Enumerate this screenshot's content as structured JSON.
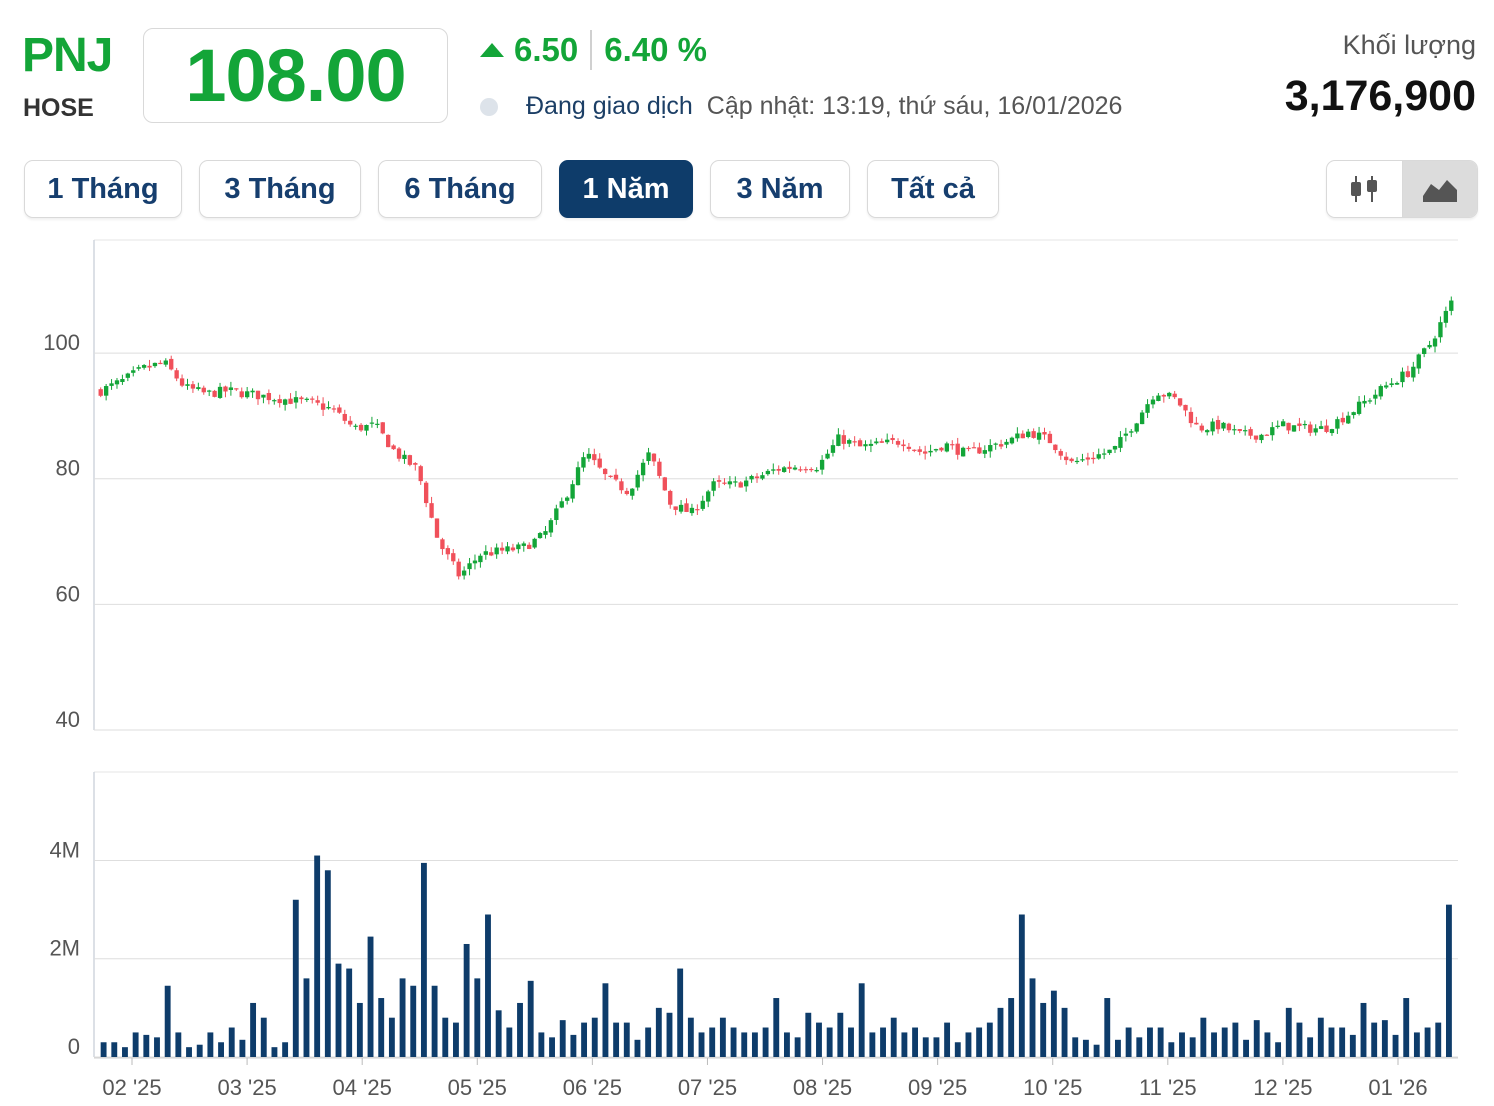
{
  "header": {
    "ticker": "PNJ",
    "exchange": "HOSE",
    "price": "108.00",
    "change": "6.50",
    "change_pct": "6.40 %",
    "status": "Đang giao dịch",
    "updated": "Cập nhật: 13:19, thứ sáu, 16/01/2026",
    "volume_label": "Khối lượng",
    "volume": "3,176,900"
  },
  "tabs": [
    {
      "label": "1 Tháng",
      "active": false
    },
    {
      "label": "3 Tháng",
      "active": false
    },
    {
      "label": "6 Tháng",
      "active": false
    },
    {
      "label": "1 Năm",
      "active": true
    },
    {
      "label": "3 Năm",
      "active": false
    },
    {
      "label": "Tất cả",
      "active": false
    }
  ],
  "chart_type_buttons": [
    {
      "icon": "candlestick-icon",
      "active": false
    },
    {
      "icon": "area-chart-icon",
      "active": true
    }
  ],
  "colors": {
    "up": "#13a538",
    "down": "#f0505a",
    "volume": "#0e3c6a",
    "accent": "#0e3c6a"
  },
  "chart_data": [
    {
      "type": "line",
      "series": [
        {
          "name": "",
          "style": "candlestick"
        }
      ],
      "x": [
        "01/2025",
        "01/2025",
        "02/2025",
        "02/2025",
        "02/2025",
        "02/2025",
        "02/2025",
        "03/2025",
        "03/2025",
        "03/2025",
        "03/2025",
        "03/2025",
        "03/2025",
        "03/2025",
        "04/2025",
        "04/2025",
        "04/2025",
        "04/2025",
        "04/2025",
        "04/2025",
        "05/2025",
        "05/2025",
        "05/2025",
        "05/2025",
        "05/2025",
        "05/2025",
        "06/2025",
        "06/2025",
        "06/2025",
        "06/2025",
        "06/2025",
        "06/2025",
        "07/2025",
        "07/2025",
        "07/2025",
        "07/2025",
        "07/2025",
        "08/2025",
        "08/2025",
        "08/2025",
        "08/2025",
        "09/2025",
        "09/2025",
        "09/2025",
        "09/2025",
        "10/2025",
        "10/2025",
        "10/2025",
        "10/2025",
        "10/2025",
        "10/2025",
        "11/2025",
        "11/2025",
        "11/2025",
        "11/2025",
        "11/2025",
        "12/2025",
        "12/2025",
        "12/2025",
        "12/2025",
        "12/2025",
        "01/2026",
        "01/2026",
        "01/2026",
        "01/2026"
      ],
      "values": [
        94,
        95.5,
        97.5,
        98.5,
        94.5,
        93.5,
        94,
        93.5,
        93,
        92.5,
        92,
        91,
        88,
        88.5,
        84,
        81.5,
        70,
        64.5,
        68,
        68.5,
        69,
        71,
        77,
        84,
        80,
        78,
        84,
        76,
        74.5,
        79,
        79,
        80,
        81.5,
        82,
        82,
        86.5,
        85,
        85.5,
        86,
        84,
        85.5,
        84,
        85,
        86,
        87.5,
        86,
        82.5,
        83.5,
        84.5,
        89,
        94,
        92.5,
        88,
        88.5,
        87,
        87,
        88.5,
        88,
        88,
        90,
        92.5,
        95,
        97,
        101.5,
        108
      ],
      "ylim": [
        40,
        118
      ],
      "yticks": [
        "100",
        "80",
        "60",
        "40"
      ]
    },
    {
      "type": "bar",
      "series": [
        {
          "name": "",
          "values": [
            0.3,
            0.3,
            0.2,
            0.5,
            0.45,
            0.4,
            1.45,
            0.5,
            0.2,
            0.25,
            0.5,
            0.3,
            0.6,
            0.35,
            1.1,
            0.8,
            0.2,
            0.3,
            3.2,
            1.6,
            4.1,
            3.8,
            1.9,
            1.8,
            1.1,
            2.45,
            1.2,
            0.8,
            1.6,
            1.45,
            3.95,
            1.45,
            0.8,
            0.7,
            2.3,
            1.6,
            2.9,
            0.95,
            0.6,
            1.1,
            1.55,
            0.5,
            0.4,
            0.75,
            0.45,
            0.7,
            0.8,
            1.5,
            0.7,
            0.7,
            0.35,
            0.6,
            1.0,
            0.9,
            1.8,
            0.8,
            0.5,
            0.6,
            0.8,
            0.6,
            0.5,
            0.5,
            0.6,
            1.2,
            0.5,
            0.4,
            0.9,
            0.7,
            0.6,
            0.9,
            0.6,
            1.5,
            0.5,
            0.6,
            0.8,
            0.5,
            0.6,
            0.4,
            0.4,
            0.7,
            0.3,
            0.5,
            0.6,
            0.7,
            1.0,
            1.2,
            2.9,
            1.6,
            1.1,
            1.35,
            1.0,
            0.4,
            0.35,
            0.25,
            1.2,
            0.35,
            0.6,
            0.4,
            0.6,
            0.6,
            0.3,
            0.5,
            0.4,
            0.8,
            0.5,
            0.6,
            0.7,
            0.35,
            0.75,
            0.5,
            0.3,
            1.0,
            0.7,
            0.4,
            0.8,
            0.6,
            0.6,
            0.45,
            1.1,
            0.7,
            0.75,
            0.45,
            1.2,
            0.5,
            0.6,
            0.7,
            3.1
          ]
        }
      ],
      "ylim": [
        0,
        5.8
      ],
      "yticks": [
        "4M",
        "2M",
        "0"
      ],
      "xticks": [
        "02 '25",
        "03 '25",
        "04 '25",
        "05 '25",
        "06 '25",
        "07 '25",
        "08 '25",
        "09 '25",
        "10 '25",
        "11 '25",
        "12 '25",
        "01 '26"
      ]
    }
  ]
}
